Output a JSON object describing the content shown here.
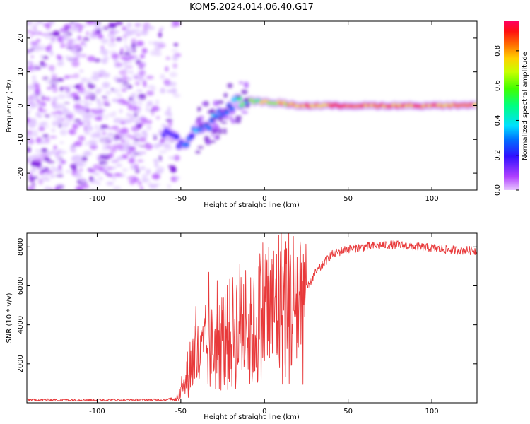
{
  "title": "KOM5.2024.014.06.40.G17",
  "chart_data": [
    {
      "type": "heatmap",
      "xlabel": "Height of straight line (km)",
      "ylabel": "Frequency (Hz)",
      "xlim": [
        -142,
        127
      ],
      "ylim": [
        -25,
        25
      ],
      "xticks": [
        -100,
        -50,
        0,
        50,
        100
      ],
      "yticks": [
        -20,
        -10,
        0,
        10,
        20
      ],
      "colorbar": {
        "label": "Normalized spectral amplitude",
        "range": [
          0.0,
          0.97
        ],
        "ticks": [
          0.0,
          0.2,
          0.4,
          0.6,
          0.8
        ],
        "colormap": "gist_rainbow (purple to red)"
      },
      "ridge": {
        "x": [
          -58,
          -50,
          -45,
          -40,
          -35,
          -30,
          -25,
          -20,
          -15,
          -10,
          0,
          10,
          20,
          40,
          60,
          80,
          100,
          127
        ],
        "y": [
          -8,
          -11,
          -10,
          -7,
          -6,
          -4,
          -2,
          0,
          1.5,
          1.5,
          1,
          0.8,
          0,
          0,
          0,
          0,
          0,
          0
        ],
        "amplitude": [
          0.25,
          0.3,
          0.35,
          0.4,
          0.42,
          0.4,
          0.35,
          0.4,
          0.55,
          0.6,
          0.75,
          0.8,
          0.85,
          0.9,
          0.92,
          0.9,
          0.92,
          0.9
        ]
      },
      "noise_region_x": [
        -142,
        -60
      ]
    },
    {
      "type": "line",
      "xlabel": "Height of straight line (km)",
      "ylabel": "SNR (10 * v/v)",
      "xlim": [
        -142,
        127
      ],
      "ylim": [
        0,
        8700
      ],
      "xticks": [
        -100,
        -50,
        0,
        50,
        100
      ],
      "yticks": [
        2000,
        4000,
        6000,
        8000
      ],
      "color": "#e8393a",
      "envelope": {
        "x": [
          -142,
          -60,
          -52,
          -48,
          -45,
          -42,
          -38,
          -35,
          -30,
          -25,
          -20,
          -15,
          -12,
          -8,
          -5,
          0,
          5,
          10,
          15,
          20,
          25,
          30,
          40,
          50,
          60,
          70,
          80,
          90,
          100,
          110,
          127
        ],
        "y": [
          150,
          150,
          250,
          800,
          1800,
          2500,
          2200,
          2800,
          3000,
          3200,
          3500,
          4000,
          4200,
          3500,
          3800,
          5000,
          4600,
          5300,
          5000,
          5200,
          5800,
          6600,
          7600,
          7900,
          8000,
          8100,
          8100,
          8000,
          7950,
          7850,
          7800
        ]
      }
    }
  ]
}
